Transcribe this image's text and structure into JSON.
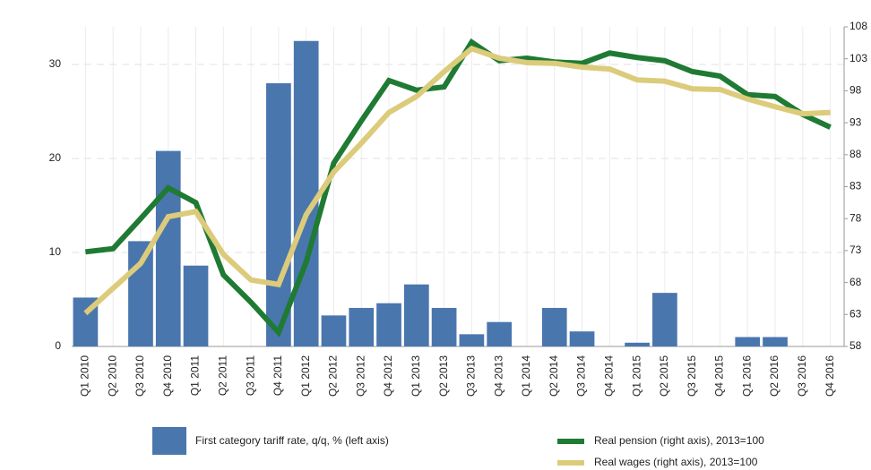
{
  "chart_data": {
    "type": "bar",
    "categories": [
      "Q1 2010",
      "Q2 2010",
      "Q3 2010",
      "Q4 2010",
      "Q1 2011",
      "Q2 2011",
      "Q3 2011",
      "Q4 2011",
      "Q1 2012",
      "Q2 2012",
      "Q3 2012",
      "Q4 2012",
      "Q1 2013",
      "Q2 2013",
      "Q3 2013",
      "Q4 2013",
      "Q1 2014",
      "Q2 2014",
      "Q3 2014",
      "Q4 2014",
      "Q1 2015",
      "Q2 2015",
      "Q3 2015",
      "Q4 2015",
      "Q1 2016",
      "Q2 2016",
      "Q3 2016",
      "Q4 2016"
    ],
    "series": [
      {
        "name": "First category tariff rate, q/q, % (left axis)",
        "type": "bar",
        "axis": "y",
        "color": "#4a76ae",
        "values": [
          5.2,
          0,
          11.2,
          20.8,
          8.6,
          0,
          0,
          28.0,
          32.5,
          3.3,
          4.1,
          4.6,
          6.6,
          4.1,
          1.3,
          2.6,
          0,
          4.1,
          1.6,
          0,
          0.4,
          5.7,
          0,
          0,
          1.0,
          1.0,
          0,
          0
        ]
      },
      {
        "name": "Real pension (right axis), 2013=100",
        "type": "line",
        "axis": "y2",
        "color": "#1f7a33",
        "values": [
          72.8,
          73.3,
          78.0,
          82.8,
          80.5,
          69.2,
          64.9,
          60.2,
          71.2,
          86.7,
          93.3,
          99.6,
          98.1,
          98.6,
          105.6,
          102.7,
          103.1,
          102.5,
          102.3,
          103.9,
          103.2,
          102.7,
          101.0,
          100.3,
          97.4,
          97.1,
          94.3,
          92.3
        ]
      },
      {
        "name": "Real wages (right axis), 2013=100",
        "type": "line",
        "axis": "y2",
        "color": "#dccb7a",
        "values": [
          63.2,
          67.1,
          71.0,
          78.3,
          79.1,
          72.4,
          68.4,
          67.7,
          78.6,
          85.3,
          89.8,
          94.6,
          97.1,
          101.0,
          104.6,
          103.1,
          102.4,
          102.3,
          101.7,
          101.4,
          99.7,
          99.5,
          98.3,
          98.2,
          96.7,
          95.5,
          94.4,
          94.6
        ]
      }
    ],
    "ylim": [
      0,
      34
    ],
    "yticks": [
      0,
      10,
      20,
      30
    ],
    "y2lim": [
      58,
      108
    ],
    "y2ticks": [
      58,
      63,
      68,
      73,
      78,
      83,
      88,
      93,
      98,
      103,
      108
    ],
    "grid": true
  }
}
